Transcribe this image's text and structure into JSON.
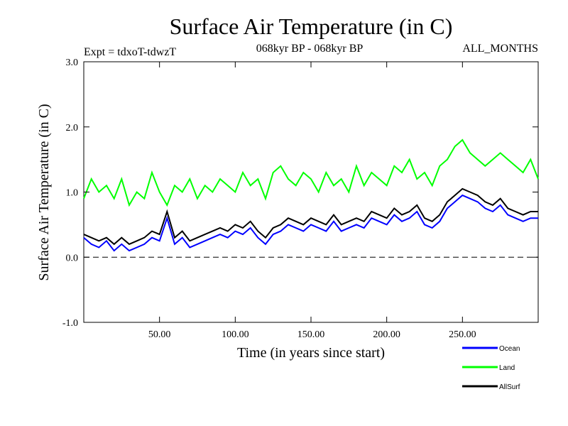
{
  "chart_data": {
    "type": "line",
    "title": "Surface Air Temperature (in C)",
    "subtitle": "068kyr BP - 068kyr BP",
    "left_label": "Expt = tdxoT-tdwzT",
    "right_label": "ALL_MONTHS",
    "xlabel": "Time (in years since start)",
    "ylabel": "Surface Air Temperature (in C)",
    "xlim": [
      0,
      300
    ],
    "ylim": [
      -1.0,
      3.0
    ],
    "x_ticks": [
      50,
      100,
      150,
      200,
      250
    ],
    "x_tick_labels": [
      "50.00",
      "100.00",
      "150.00",
      "200.00",
      "250.00"
    ],
    "y_ticks": [
      -1,
      0,
      1,
      2,
      3
    ],
    "y_tick_labels": [
      "-1.0",
      "0.0",
      "1.0",
      "2.0",
      "3.0"
    ],
    "reference_line": {
      "y": 0,
      "style": "dashed"
    },
    "legend_position": "below-right",
    "series": [
      {
        "name": "Land",
        "color": "#00ff00",
        "x": [
          0,
          5,
          10,
          15,
          20,
          25,
          30,
          35,
          40,
          45,
          50,
          55,
          60,
          65,
          70,
          75,
          80,
          85,
          90,
          95,
          100,
          105,
          110,
          115,
          120,
          125,
          130,
          135,
          140,
          145,
          150,
          155,
          160,
          165,
          170,
          175,
          180,
          185,
          190,
          195,
          200,
          205,
          210,
          215,
          220,
          225,
          230,
          235,
          240,
          245,
          250,
          255,
          260,
          265,
          270,
          275,
          280,
          285,
          290,
          295,
          300
        ],
        "values": [
          0.9,
          1.2,
          1.0,
          1.1,
          0.9,
          1.2,
          0.8,
          1.0,
          0.9,
          1.3,
          1.0,
          0.8,
          1.1,
          1.0,
          1.2,
          0.9,
          1.1,
          1.0,
          1.2,
          1.1,
          1.0,
          1.3,
          1.1,
          1.2,
          0.9,
          1.3,
          1.4,
          1.2,
          1.1,
          1.3,
          1.2,
          1.0,
          1.3,
          1.1,
          1.2,
          1.0,
          1.4,
          1.1,
          1.3,
          1.2,
          1.1,
          1.4,
          1.3,
          1.5,
          1.2,
          1.3,
          1.1,
          1.4,
          1.5,
          1.7,
          1.8,
          1.6,
          1.5,
          1.4,
          1.5,
          1.6,
          1.5,
          1.4,
          1.3,
          1.5,
          1.2
        ]
      },
      {
        "name": "Ocean",
        "color": "#0000ff",
        "x": [
          0,
          5,
          10,
          15,
          20,
          25,
          30,
          35,
          40,
          45,
          50,
          55,
          60,
          65,
          70,
          75,
          80,
          85,
          90,
          95,
          100,
          105,
          110,
          115,
          120,
          125,
          130,
          135,
          140,
          145,
          150,
          155,
          160,
          165,
          170,
          175,
          180,
          185,
          190,
          195,
          200,
          205,
          210,
          215,
          220,
          225,
          230,
          235,
          240,
          245,
          250,
          255,
          260,
          265,
          270,
          275,
          280,
          285,
          290,
          295,
          300
        ],
        "values": [
          0.3,
          0.2,
          0.15,
          0.25,
          0.1,
          0.2,
          0.1,
          0.15,
          0.2,
          0.3,
          0.25,
          0.6,
          0.2,
          0.3,
          0.15,
          0.2,
          0.25,
          0.3,
          0.35,
          0.3,
          0.4,
          0.35,
          0.45,
          0.3,
          0.2,
          0.35,
          0.4,
          0.5,
          0.45,
          0.4,
          0.5,
          0.45,
          0.4,
          0.55,
          0.4,
          0.45,
          0.5,
          0.45,
          0.6,
          0.55,
          0.5,
          0.65,
          0.55,
          0.6,
          0.7,
          0.5,
          0.45,
          0.55,
          0.75,
          0.85,
          0.95,
          0.9,
          0.85,
          0.75,
          0.7,
          0.8,
          0.65,
          0.6,
          0.55,
          0.6,
          0.6
        ]
      },
      {
        "name": "AllSurf",
        "color": "#000000",
        "x": [
          0,
          5,
          10,
          15,
          20,
          25,
          30,
          35,
          40,
          45,
          50,
          55,
          60,
          65,
          70,
          75,
          80,
          85,
          90,
          95,
          100,
          105,
          110,
          115,
          120,
          125,
          130,
          135,
          140,
          145,
          150,
          155,
          160,
          165,
          170,
          175,
          180,
          185,
          190,
          195,
          200,
          205,
          210,
          215,
          220,
          225,
          230,
          235,
          240,
          245,
          250,
          255,
          260,
          265,
          270,
          275,
          280,
          285,
          290,
          295,
          300
        ],
        "values": [
          0.35,
          0.3,
          0.25,
          0.3,
          0.2,
          0.3,
          0.2,
          0.25,
          0.3,
          0.4,
          0.35,
          0.7,
          0.3,
          0.4,
          0.25,
          0.3,
          0.35,
          0.4,
          0.45,
          0.4,
          0.5,
          0.45,
          0.55,
          0.4,
          0.3,
          0.45,
          0.5,
          0.6,
          0.55,
          0.5,
          0.6,
          0.55,
          0.5,
          0.65,
          0.5,
          0.55,
          0.6,
          0.55,
          0.7,
          0.65,
          0.6,
          0.75,
          0.65,
          0.7,
          0.8,
          0.6,
          0.55,
          0.65,
          0.85,
          0.95,
          1.05,
          1.0,
          0.95,
          0.85,
          0.8,
          0.9,
          0.75,
          0.7,
          0.65,
          0.7,
          0.7
        ]
      }
    ]
  }
}
